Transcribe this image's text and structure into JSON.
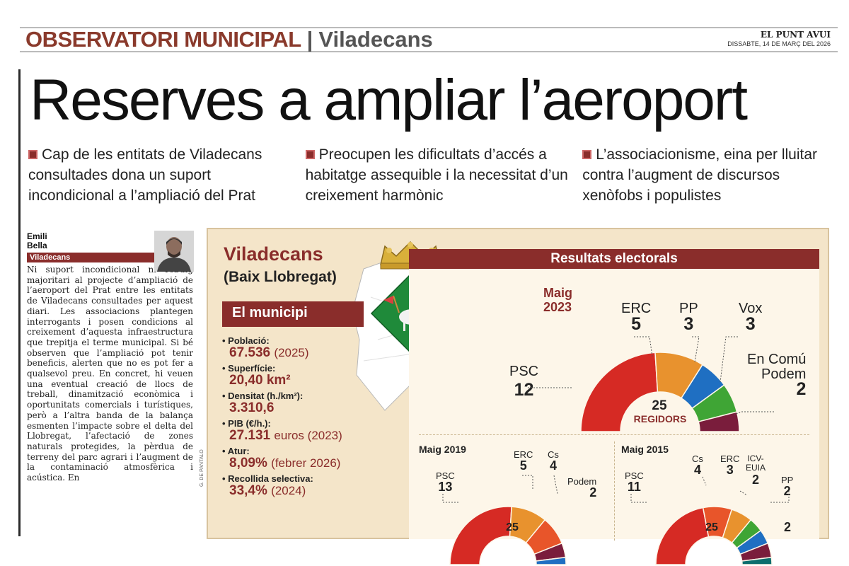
{
  "header": {
    "rubric": "OBSERVATORI MUNICIPAL",
    "separator": "|",
    "town": "Viladecans",
    "publication": "EL PUNT AVUI",
    "date": "DISSABTE, 14 DE MARÇ DEL 2026"
  },
  "headline": "Reserves a ampliar l’aeroport",
  "subheads": [
    "Cap de les entitats de Viladecans consultades dona un suport incondicional a l’ampliació del Prat",
    "Preocupen les dificultats d’accés a habitatge assequible i la necessitat d’un creixement harmònic",
    "L’associacionisme, eina per lluitar contra l’augment de discursos xenòfobs i populistes"
  ],
  "article": {
    "author_first": "Emili",
    "author_last": "Bella",
    "location": "Viladecans",
    "body": "Ni suport incondicional ni rebuig majoritari al projecte d’ampliació de l’aeroport del Prat entre les entitats de Viladecans consultades per aquest diari. Les associacions plantegen interrogants i posen condicions al creixement d’aquesta infraestructura que trepitja el terme municipal. Si bé observen que l’ampliació pot tenir beneficis, alerten que no es pot fer a qualsevol preu. En concret, hi veuen una eventual creació de llocs de treball, dinamització econòmica i oportunitats comercials i turístiques, però a l’altra banda de la balança esmenten l’impacte sobre el delta del Llobregat, l’afectació de zones naturals protegides, la pèrdua de terreny del parc agrari i l’augment de la contaminació atmosfèrica i acústica. En",
    "photo_credit": "G. DE PANTALO"
  },
  "infographic": {
    "municipality": "Viladecans",
    "comarca": "(Baix Llobregat)",
    "section_title": "El municipi",
    "stats": [
      {
        "label": "Població:",
        "value": "67.536",
        "extra": "(2025)"
      },
      {
        "label": "Superfície:",
        "value": "20,40 km²",
        "extra": ""
      },
      {
        "label": "Densitat (h./km²):",
        "value": "3.310,6",
        "extra": ""
      },
      {
        "label": "PIB (€/h.):",
        "value": "27.131",
        "extra": "euros (2023)"
      },
      {
        "label": "Atur:",
        "value": "8,09%",
        "extra": "(febrer 2026)"
      },
      {
        "label": "Recollida selectiva:",
        "value": "33,4%",
        "extra": "(2024)"
      }
    ],
    "results_title": "Resultats electorals",
    "total_label": "REGIDORS",
    "elections": [
      {
        "name": "Maig 2023",
        "name_l1": "Maig",
        "name_l2": "2023",
        "total": "25",
        "parties": [
          {
            "party": "PSC",
            "seats": 12,
            "color": "#d62a24"
          },
          {
            "party": "ERC",
            "seats": 5,
            "color": "#e8922e"
          },
          {
            "party": "PP",
            "seats": 3,
            "color": "#1f6fc2"
          },
          {
            "party": "Vox",
            "seats": 3,
            "color": "#3fa535"
          },
          {
            "party": "En Comú Podem",
            "party_l1": "En Comú",
            "party_l2": "Podem",
            "seats": 2,
            "color": "#7a1d3c"
          }
        ]
      },
      {
        "name": "Maig 2019",
        "total": "25",
        "parties": [
          {
            "party": "PSC",
            "seats": 13,
            "color": "#d62a24"
          },
          {
            "party": "ERC",
            "seats": 5,
            "color": "#e8922e"
          },
          {
            "party": "Cs",
            "seats": 4,
            "color": "#e8552a"
          },
          {
            "party": "Podem",
            "seats": 2,
            "color": "#7a1d3c"
          },
          {
            "party": "",
            "seats": 1,
            "color": "#1f6fc2"
          }
        ]
      },
      {
        "name": "Maig 2015",
        "total": "25",
        "parties": [
          {
            "party": "PSC",
            "seats": 11,
            "color": "#d62a24"
          },
          {
            "party": "Cs",
            "seats": 4,
            "color": "#e8552a"
          },
          {
            "party": "ERC",
            "seats": 3,
            "color": "#e8922e"
          },
          {
            "party": "ICV-EUIA",
            "party_l1": "ICV-",
            "party_l2": "EUIA",
            "seats": 2,
            "color": "#3fa535"
          },
          {
            "party": "PP",
            "seats": 2,
            "color": "#1f6fc2"
          },
          {
            "party": "",
            "seats": 2,
            "color": "#7a1d3c"
          },
          {
            "party": "",
            "seats": 1,
            "color": "#0d6e6e"
          }
        ]
      }
    ]
  },
  "colors": {
    "accent": "#8a2d2b",
    "rubric": "#8a3a2c",
    "panel": "#f4e5c9"
  }
}
